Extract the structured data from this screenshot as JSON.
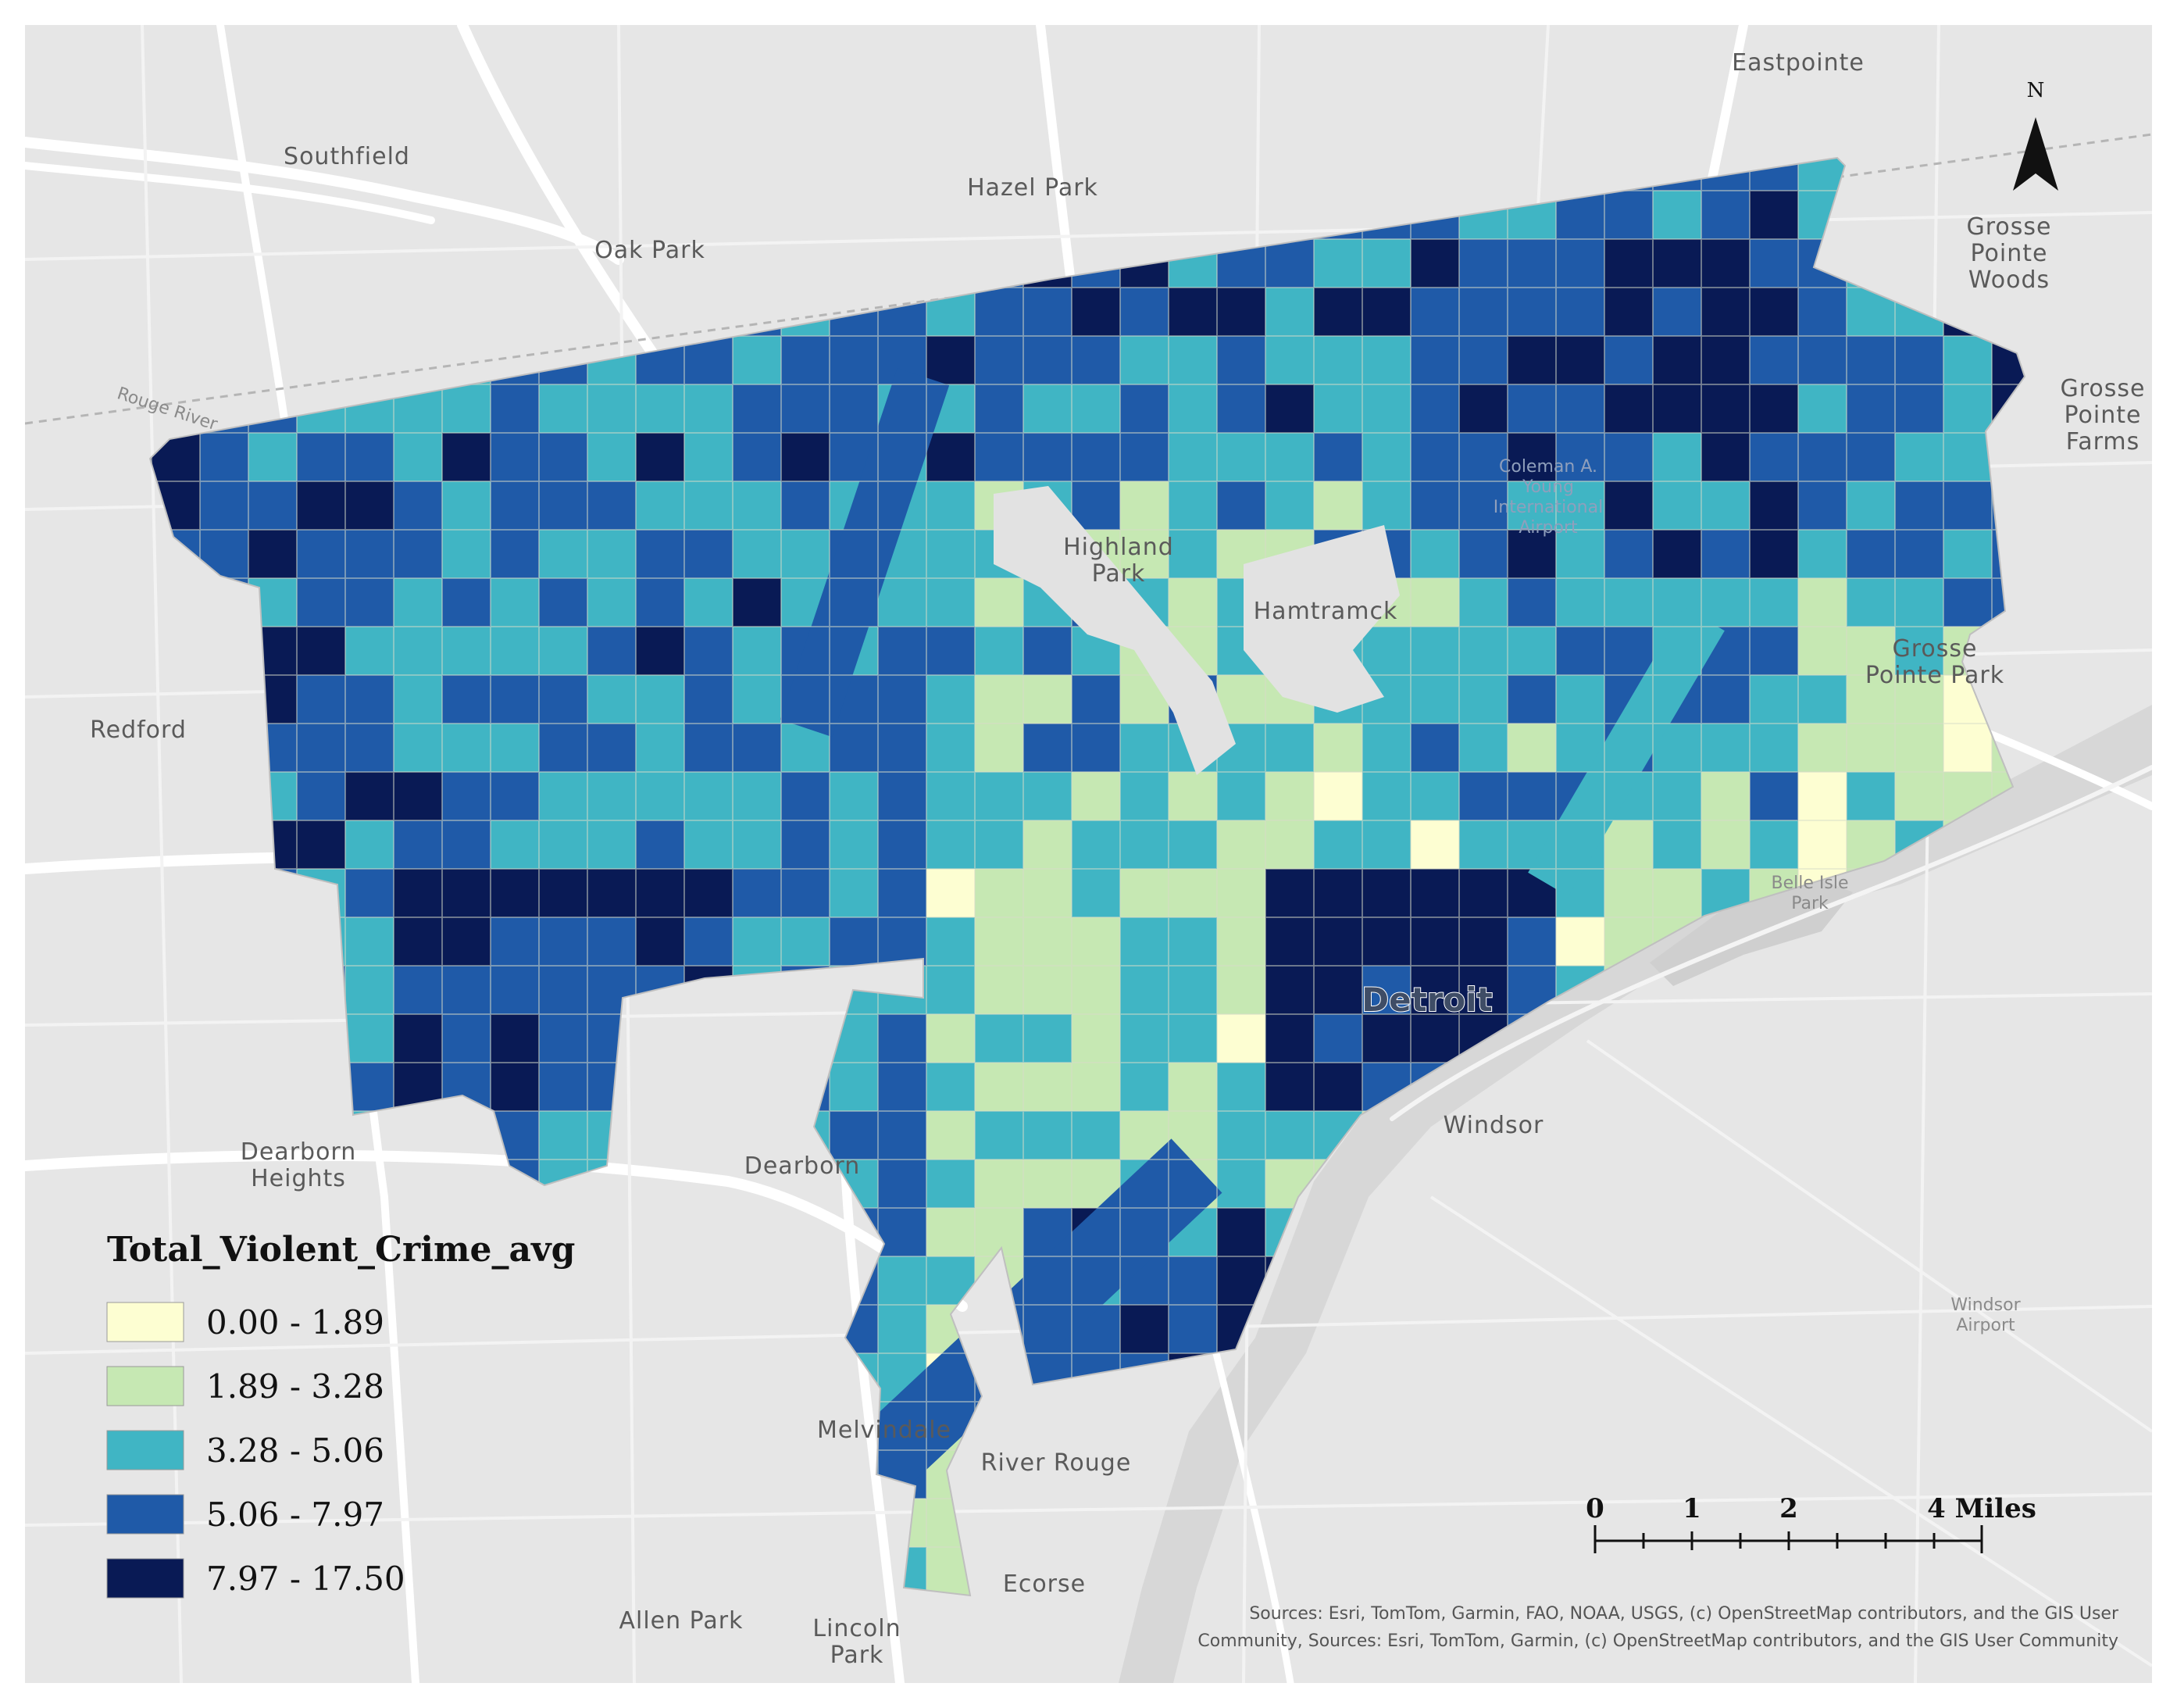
{
  "map": {
    "places": [
      {
        "id": "eastpointe",
        "lines": [
          "Eastpointe"
        ]
      },
      {
        "id": "southfield",
        "lines": [
          "Southfield"
        ]
      },
      {
        "id": "hazel-park",
        "lines": [
          "Hazel Park"
        ]
      },
      {
        "id": "oak-park",
        "lines": [
          "Oak Park"
        ]
      },
      {
        "id": "grosse-pointe-woods",
        "lines": [
          "Grosse",
          "Pointe",
          "Woods"
        ]
      },
      {
        "id": "grosse-pointe-farms",
        "lines": [
          "Grosse",
          "Pointe",
          "Farms"
        ]
      },
      {
        "id": "highland-park",
        "lines": [
          "Highland",
          "Park"
        ]
      },
      {
        "id": "hamtramck",
        "lines": [
          "Hamtramck"
        ]
      },
      {
        "id": "grosse-pointe-park",
        "lines": [
          "Grosse",
          "Pointe Park"
        ]
      },
      {
        "id": "redford",
        "lines": [
          "Redford"
        ]
      },
      {
        "id": "dearborn-heights",
        "lines": [
          "Dearborn",
          "Heights"
        ]
      },
      {
        "id": "dearborn",
        "lines": [
          "Dearborn"
        ]
      },
      {
        "id": "windsor",
        "lines": [
          "Windsor"
        ]
      },
      {
        "id": "melvindale",
        "lines": [
          "Melvindale"
        ]
      },
      {
        "id": "river-rouge",
        "lines": [
          "River Rouge"
        ]
      },
      {
        "id": "ecorse",
        "lines": [
          "Ecorse"
        ]
      },
      {
        "id": "allen-park",
        "lines": [
          "Allen Park"
        ]
      },
      {
        "id": "lincoln-park",
        "lines": [
          "Lincoln",
          "Park"
        ]
      }
    ],
    "minor_places": [
      {
        "id": "rouge-river",
        "lines": [
          "Rouge River"
        ]
      },
      {
        "id": "belle-isle-park",
        "lines": [
          "Belle Isle",
          "Park"
        ]
      },
      {
        "id": "windsor-airport",
        "lines": [
          "Windsor",
          "Airport"
        ]
      },
      {
        "id": "coleman-airport",
        "lines": [
          "Coleman A.",
          "Young",
          "International",
          "Airport"
        ]
      }
    ],
    "city_label": "Detroit",
    "north_label": "N",
    "credits": [
      "Sources:  Esri, TomTom, Garmin, FAO, NOAA, USGS, (c) OpenStreetMap contributors, and the GIS User",
      "Community, Sources:  Esri, TomTom, Garmin, (c) OpenStreetMap contributors, and the GIS User Community"
    ]
  },
  "legend": {
    "title": "Total_Violent_Crime_avg",
    "classes": [
      {
        "label": "0.00 - 1.89",
        "color": "#fdfed2"
      },
      {
        "label": "1.89 - 3.28",
        "color": "#c6e8b3"
      },
      {
        "label": "3.28 - 5.06",
        "color": "#40b5c4"
      },
      {
        "label": "5.06 - 7.97",
        "color": "#1f5aa8"
      },
      {
        "label": "7.97 - 17.50",
        "color": "#091a55"
      }
    ]
  },
  "scale_bar": {
    "ticks": [
      "0",
      "1",
      "2"
    ],
    "end_label": "4 Miles"
  }
}
